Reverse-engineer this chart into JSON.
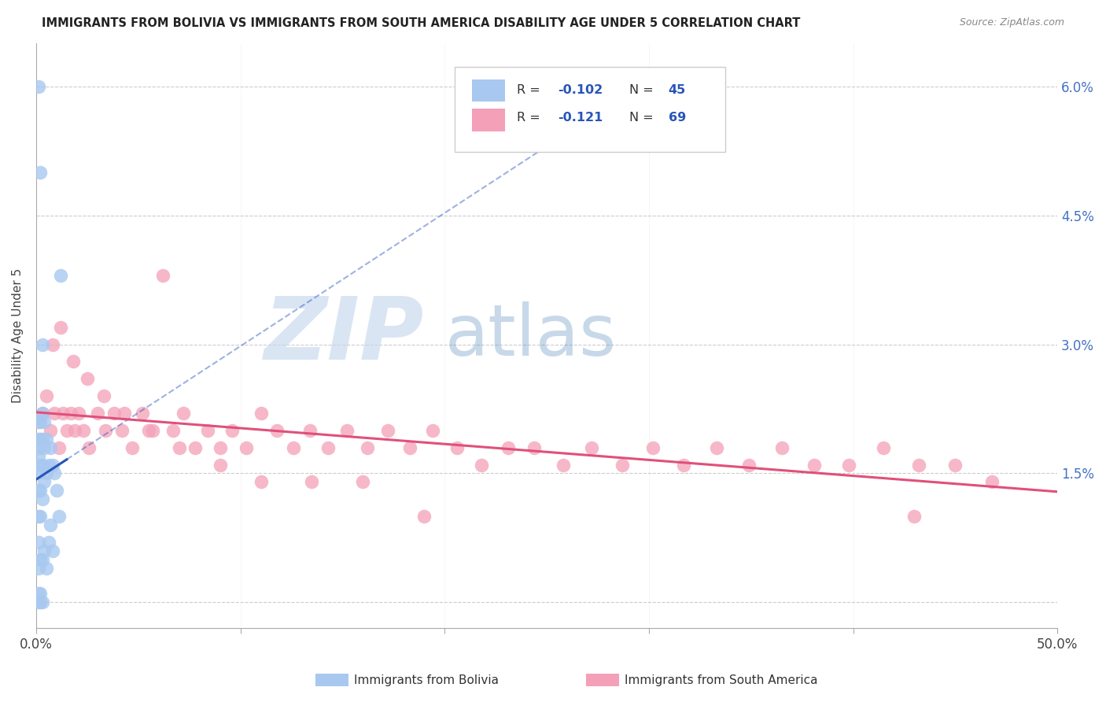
{
  "title": "IMMIGRANTS FROM BOLIVIA VS IMMIGRANTS FROM SOUTH AMERICA DISABILITY AGE UNDER 5 CORRELATION CHART",
  "source": "Source: ZipAtlas.com",
  "ylabel": "Disability Age Under 5",
  "xmin": 0.0,
  "xmax": 0.5,
  "ymin": -0.003,
  "ymax": 0.065,
  "ytick_vals": [
    0.0,
    0.015,
    0.03,
    0.045,
    0.06
  ],
  "ytick_labels_right": [
    "",
    "1.5%",
    "3.0%",
    "4.5%",
    "6.0%"
  ],
  "xtick_vals": [
    0.0,
    0.1,
    0.2,
    0.3,
    0.4,
    0.5
  ],
  "xtick_labels": [
    "0.0%",
    "",
    "",
    "",
    "",
    "50.0%"
  ],
  "bolivia_color": "#a8c8f0",
  "sa_color": "#f4a0b8",
  "bolivia_line_color": "#2855b8",
  "sa_line_color": "#e0507a",
  "bolivia_R": -0.102,
  "bolivia_N": 45,
  "sa_R": -0.121,
  "sa_N": 69,
  "legend_color": "#2855b8",
  "bolivia_x": [
    0.001,
    0.001,
    0.001,
    0.001,
    0.001,
    0.001,
    0.001,
    0.001,
    0.001,
    0.001,
    0.002,
    0.002,
    0.002,
    0.002,
    0.002,
    0.002,
    0.002,
    0.003,
    0.003,
    0.003,
    0.003,
    0.003,
    0.004,
    0.004,
    0.004,
    0.004,
    0.005,
    0.005,
    0.005,
    0.006,
    0.006,
    0.007,
    0.007,
    0.008,
    0.008,
    0.009,
    0.01,
    0.011,
    0.012,
    0.001,
    0.002,
    0.003,
    0.001,
    0.002,
    0.003
  ],
  "bolivia_y": [
    0.021,
    0.019,
    0.018,
    0.017,
    0.015,
    0.013,
    0.01,
    0.007,
    0.004,
    0.001,
    0.021,
    0.019,
    0.016,
    0.013,
    0.01,
    0.005,
    0.001,
    0.022,
    0.019,
    0.016,
    0.012,
    0.005,
    0.021,
    0.018,
    0.014,
    0.006,
    0.019,
    0.015,
    0.004,
    0.016,
    0.007,
    0.018,
    0.009,
    0.016,
    0.006,
    0.015,
    0.013,
    0.01,
    0.038,
    0.06,
    0.05,
    0.03,
    0.0,
    0.0,
    0.0
  ],
  "sa_x": [
    0.003,
    0.005,
    0.007,
    0.009,
    0.011,
    0.013,
    0.015,
    0.017,
    0.019,
    0.021,
    0.023,
    0.026,
    0.03,
    0.034,
    0.038,
    0.042,
    0.047,
    0.052,
    0.057,
    0.062,
    0.067,
    0.072,
    0.078,
    0.084,
    0.09,
    0.096,
    0.103,
    0.11,
    0.118,
    0.126,
    0.134,
    0.143,
    0.152,
    0.162,
    0.172,
    0.183,
    0.194,
    0.206,
    0.218,
    0.231,
    0.244,
    0.258,
    0.272,
    0.287,
    0.302,
    0.317,
    0.333,
    0.349,
    0.365,
    0.381,
    0.398,
    0.415,
    0.432,
    0.45,
    0.468,
    0.008,
    0.012,
    0.018,
    0.025,
    0.033,
    0.043,
    0.055,
    0.07,
    0.09,
    0.11,
    0.135,
    0.16,
    0.19,
    0.43
  ],
  "sa_y": [
    0.022,
    0.024,
    0.02,
    0.022,
    0.018,
    0.022,
    0.02,
    0.022,
    0.02,
    0.022,
    0.02,
    0.018,
    0.022,
    0.02,
    0.022,
    0.02,
    0.018,
    0.022,
    0.02,
    0.038,
    0.02,
    0.022,
    0.018,
    0.02,
    0.018,
    0.02,
    0.018,
    0.022,
    0.02,
    0.018,
    0.02,
    0.018,
    0.02,
    0.018,
    0.02,
    0.018,
    0.02,
    0.018,
    0.016,
    0.018,
    0.018,
    0.016,
    0.018,
    0.016,
    0.018,
    0.016,
    0.018,
    0.016,
    0.018,
    0.016,
    0.016,
    0.018,
    0.016,
    0.016,
    0.014,
    0.03,
    0.032,
    0.028,
    0.026,
    0.024,
    0.022,
    0.02,
    0.018,
    0.016,
    0.014,
    0.014,
    0.014,
    0.01,
    0.01
  ]
}
